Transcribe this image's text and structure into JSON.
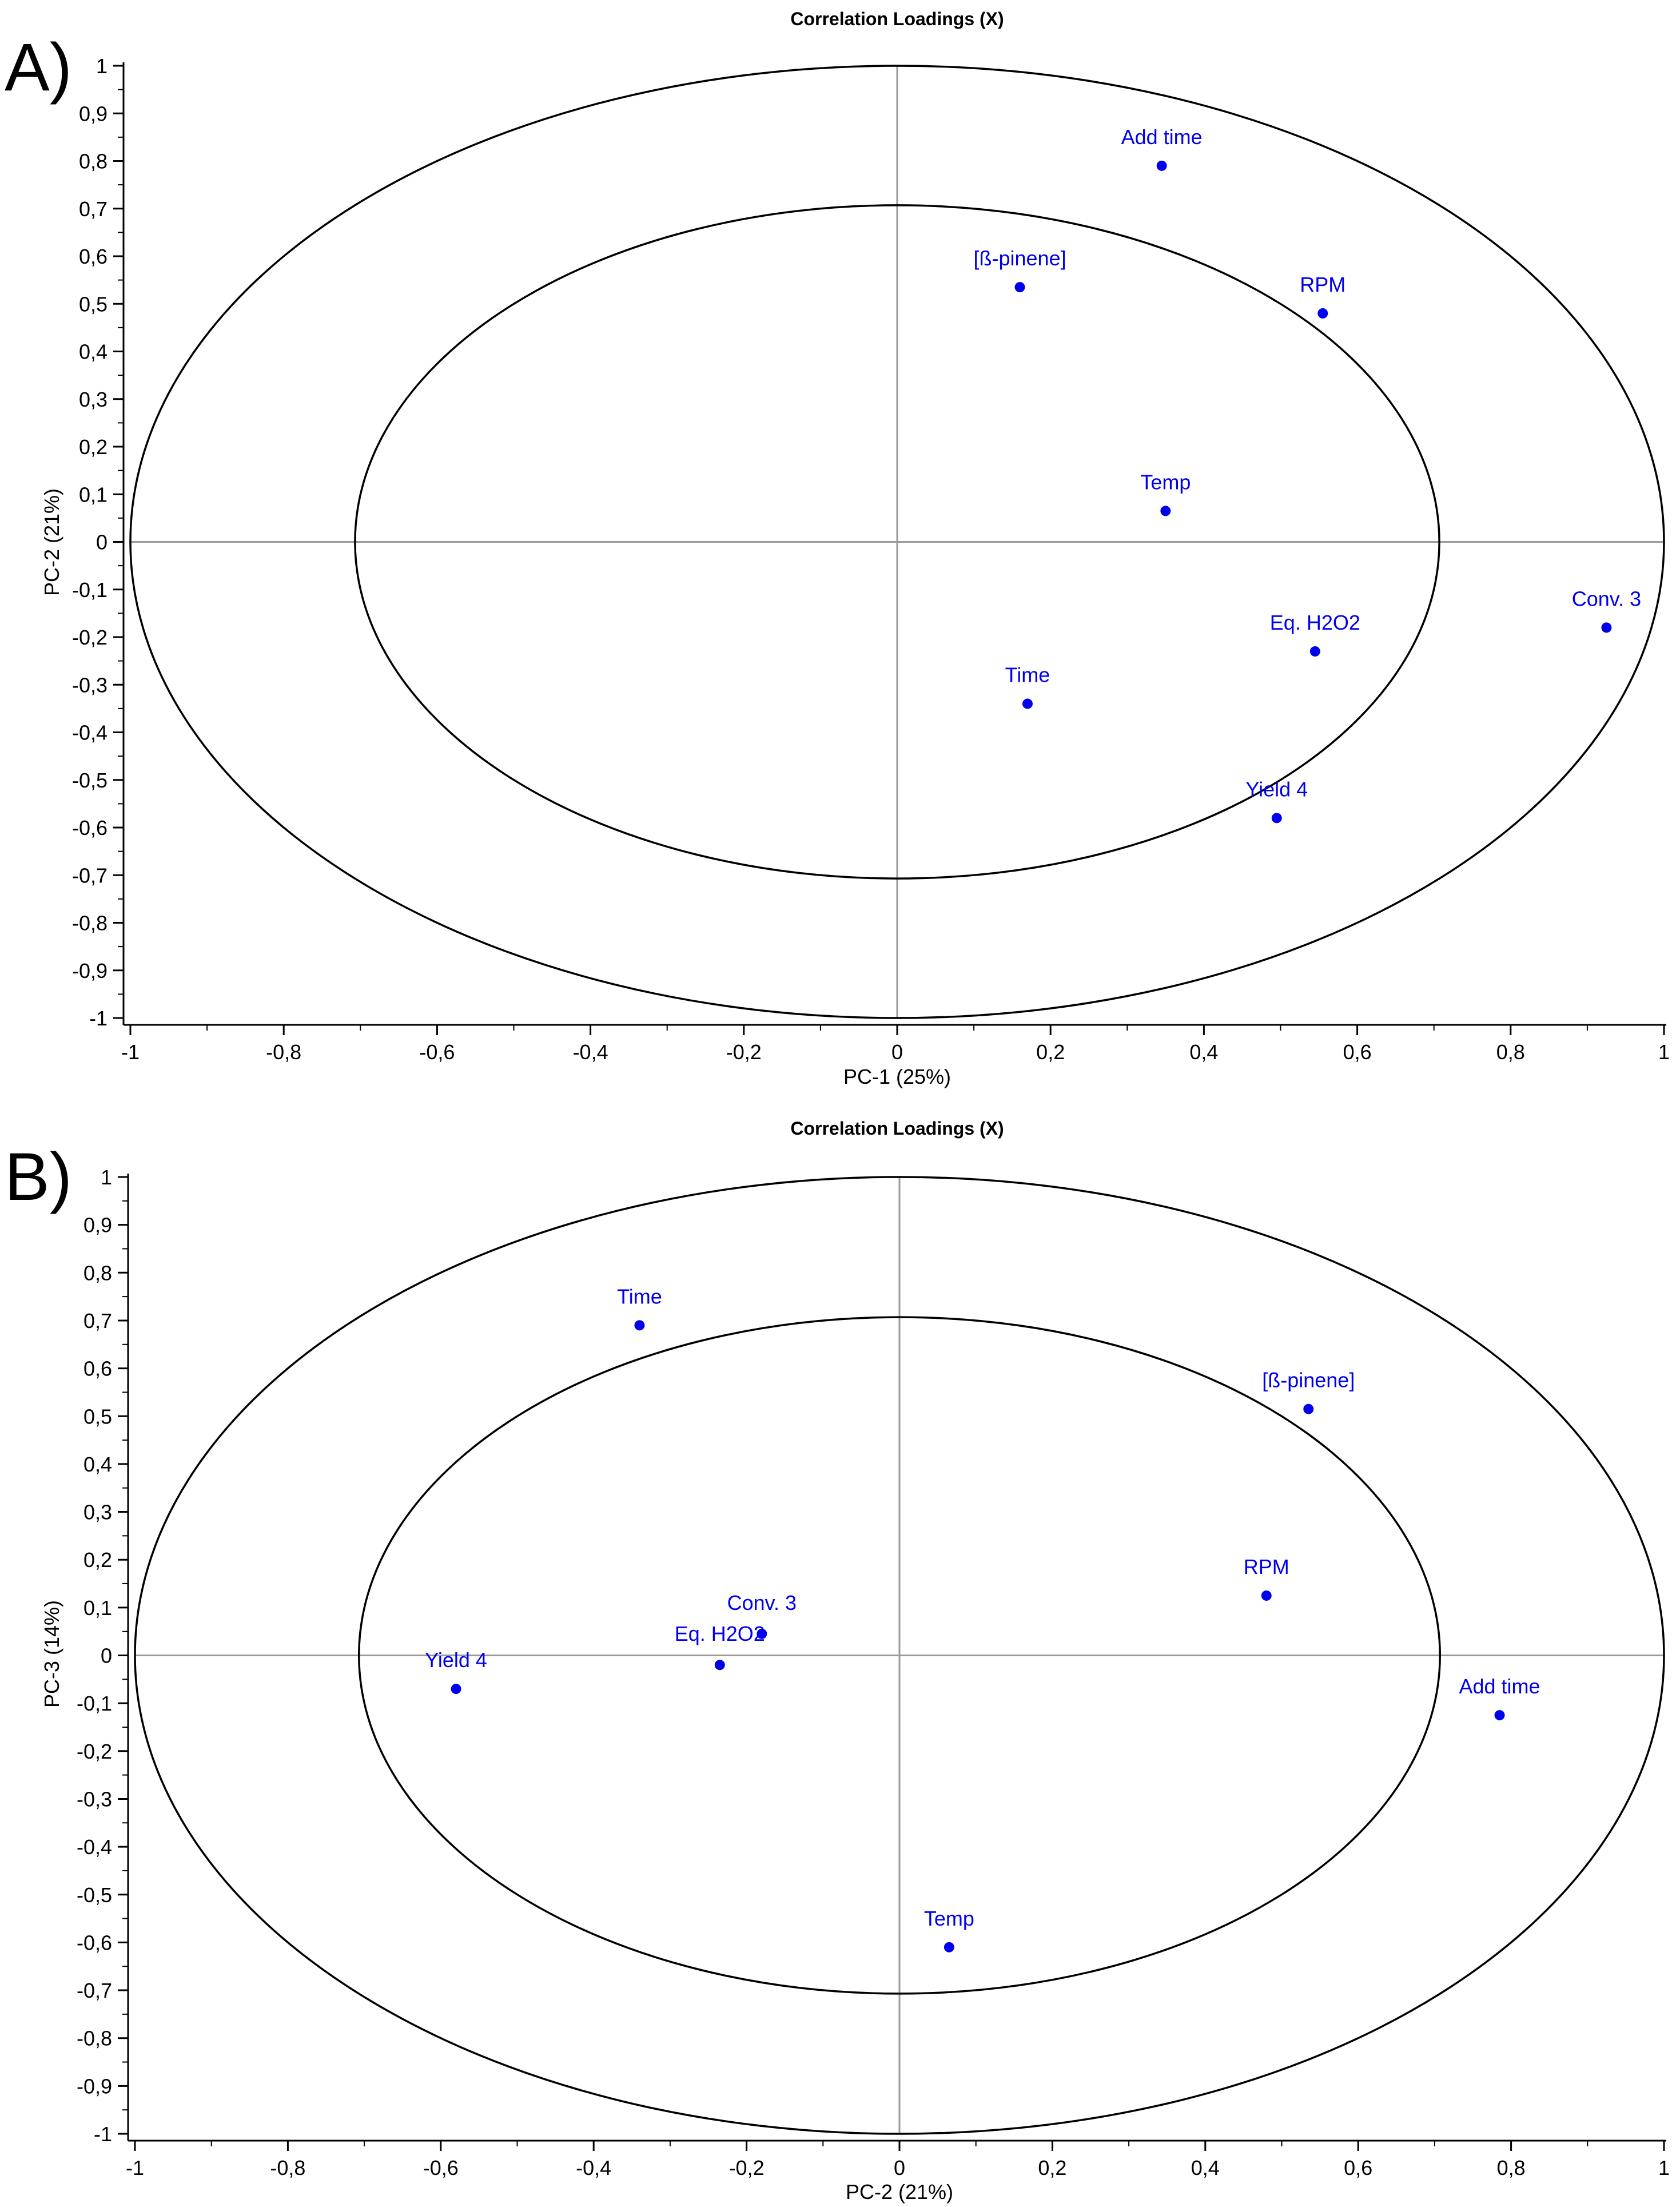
{
  "panels": {
    "a": {
      "label": "A)"
    },
    "b": {
      "label": "B)"
    }
  },
  "colors": {
    "points": "#0000ee",
    "zero_lines": "#9a9a9a",
    "ellipses": "#000000",
    "axes": "#000000"
  },
  "chart_data": [
    {
      "type": "scatter",
      "title": "Correlation Loadings (X)",
      "xlabel": "PC-1 (25%)",
      "ylabel": "PC-2 (21%)",
      "xlim": [
        -1,
        1
      ],
      "ylim": [
        -1,
        1
      ],
      "x_ticks": [
        "-1",
        "-0,8",
        "-0,6",
        "-0,4",
        "-0,2",
        "0",
        "0,2",
        "0,4",
        "0,6",
        "0,8",
        "1"
      ],
      "y_ticks": [
        "1",
        "0,9",
        "0,8",
        "0,7",
        "0,6",
        "0,5",
        "0,4",
        "0,3",
        "0,2",
        "0,1",
        "0",
        "-0,1",
        "-0,2",
        "-0,3",
        "-0,4",
        "-0,5",
        "-0,6",
        "-0,7",
        "-0,8",
        "-0,9",
        "-1"
      ],
      "circles": [
        1.0,
        0.707
      ],
      "points": [
        {
          "label": "Add time",
          "x": 0.345,
          "y": 0.79
        },
        {
          "label": "[ß-pinene]",
          "x": 0.16,
          "y": 0.535
        },
        {
          "label": "RPM",
          "x": 0.555,
          "y": 0.48
        },
        {
          "label": "Temp",
          "x": 0.35,
          "y": 0.065
        },
        {
          "label": "Conv. 3",
          "x": 0.925,
          "y": -0.18
        },
        {
          "label": "Eq. H2O2",
          "x": 0.545,
          "y": -0.23
        },
        {
          "label": "Time",
          "x": 0.17,
          "y": -0.34
        },
        {
          "label": "Yield 4",
          "x": 0.495,
          "y": -0.58
        }
      ]
    },
    {
      "type": "scatter",
      "title": "Correlation Loadings (X)",
      "xlabel": "PC-2 (21%)",
      "ylabel": "PC-3 (14%)",
      "xlim": [
        -1,
        1
      ],
      "ylim": [
        -1,
        1
      ],
      "x_ticks": [
        "-1",
        "-0,8",
        "-0,6",
        "-0,4",
        "-0,2",
        "0",
        "0,2",
        "0,4",
        "0,6",
        "0,8",
        "1"
      ],
      "y_ticks": [
        "1",
        "0,9",
        "0,8",
        "0,7",
        "0,6",
        "0,5",
        "0,4",
        "0,3",
        "0,2",
        "0,1",
        "0",
        "-0,1",
        "-0,2",
        "-0,3",
        "-0,4",
        "-0,5",
        "-0,6",
        "-0,7",
        "-0,8",
        "-0,9",
        "-1"
      ],
      "circles": [
        1.0,
        0.707
      ],
      "points": [
        {
          "label": "Time",
          "x": -0.34,
          "y": 0.69
        },
        {
          "label": "[ß-pinene]",
          "x": 0.535,
          "y": 0.515
        },
        {
          "label": "RPM",
          "x": 0.48,
          "y": 0.125
        },
        {
          "label": "Conv. 3",
          "x": -0.18,
          "y": 0.045
        },
        {
          "label": "Eq. H2O2",
          "x": -0.235,
          "y": -0.02
        },
        {
          "label": "Yield 4",
          "x": -0.58,
          "y": -0.07
        },
        {
          "label": "Add time",
          "x": 0.785,
          "y": -0.125
        },
        {
          "label": "Temp",
          "x": 0.065,
          "y": -0.61
        }
      ]
    }
  ]
}
